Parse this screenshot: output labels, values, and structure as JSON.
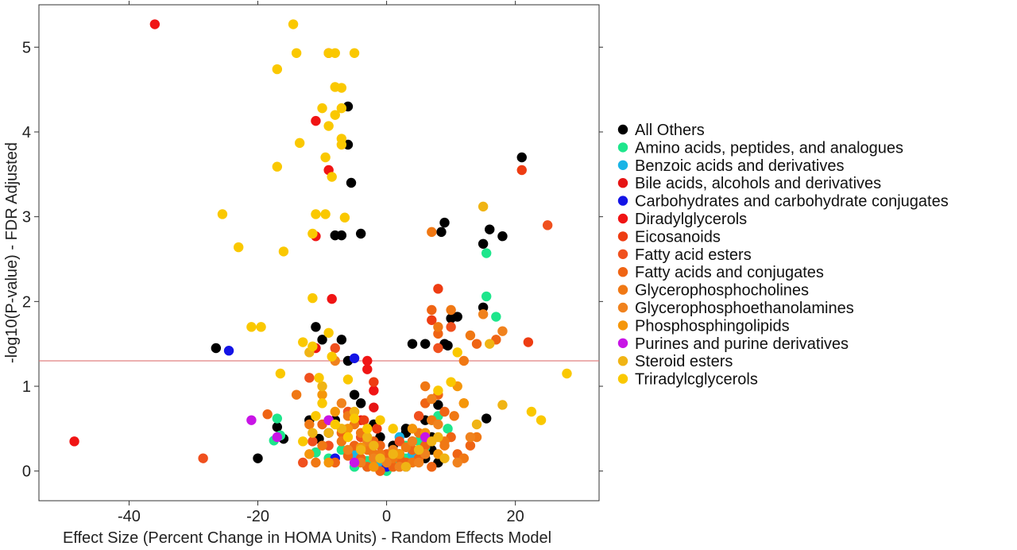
{
  "chart_data": {
    "type": "scatter",
    "title": "",
    "xlabel": "Effect Size (Percent Change in HOMA Units) - Random Effects Model",
    "ylabel": "-log10(P-value) - FDR Adjusted",
    "xlim": [
      -54,
      33
    ],
    "ylim": [
      -0.35,
      5.5
    ],
    "xticks": [
      -40,
      -20,
      0,
      20
    ],
    "yticks": [
      0,
      1,
      2,
      3,
      4,
      5
    ],
    "grid": false,
    "legend_position": "right",
    "hline": {
      "y": 1.3,
      "color": "#e08080"
    },
    "series": [
      {
        "name": "All Others",
        "color": "#000000",
        "points": [
          [
            -26.5,
            1.45
          ],
          [
            -20,
            0.15
          ],
          [
            -17,
            0.52
          ],
          [
            -16,
            0.38
          ],
          [
            -11,
            1.7
          ],
          [
            -10,
            1.55
          ],
          [
            -8,
            2.78
          ],
          [
            -7,
            2.78
          ],
          [
            -4,
            2.8
          ],
          [
            -6,
            4.3
          ],
          [
            -6,
            3.85
          ],
          [
            -5.5,
            3.4
          ],
          [
            -7,
            1.55
          ],
          [
            -6,
            1.3
          ],
          [
            -5,
            0.9
          ],
          [
            -4,
            0.8
          ],
          [
            -2,
            0.55
          ],
          [
            -1,
            0.4
          ],
          [
            1,
            0.3
          ],
          [
            2,
            0.2
          ],
          [
            3,
            0.45
          ],
          [
            4,
            0.35
          ],
          [
            5,
            0.2
          ],
          [
            6,
            0.15
          ],
          [
            7,
            0.25
          ],
          [
            8,
            0.1
          ],
          [
            8,
            0.78
          ],
          [
            9,
            1.5
          ],
          [
            9.5,
            1.48
          ],
          [
            10,
            1.8
          ],
          [
            11,
            1.82
          ],
          [
            8.5,
            2.82
          ],
          [
            9,
            2.93
          ],
          [
            15,
            1.93
          ],
          [
            15.5,
            0.62
          ],
          [
            15,
            2.68
          ],
          [
            16,
            2.85
          ],
          [
            18,
            2.77
          ],
          [
            21,
            3.7
          ],
          [
            3,
            0.5
          ],
          [
            -3,
            0.3
          ],
          [
            -8,
            0.6
          ],
          [
            -9,
            0.45
          ],
          [
            -10.5,
            0.38
          ],
          [
            -11,
            0.22
          ],
          [
            -12,
            0.6
          ],
          [
            6,
            0.6
          ],
          [
            7,
            0.4
          ],
          [
            4,
            1.5
          ],
          [
            6,
            1.5
          ],
          [
            -1,
            0.15
          ],
          [
            0,
            0.05
          ],
          [
            1,
            0.1
          ],
          [
            -2,
            0.1
          ]
        ]
      },
      {
        "name": "Amino acids, peptides, and analogues",
        "color": "#1ee68c",
        "points": [
          [
            -17,
            0.62
          ],
          [
            -17.5,
            0.36
          ],
          [
            -16.5,
            0.42
          ],
          [
            -11,
            0.22
          ],
          [
            -9,
            0.15
          ],
          [
            -7,
            0.25
          ],
          [
            -5,
            0.05
          ],
          [
            -3,
            0.12
          ],
          [
            0,
            0
          ],
          [
            1,
            0.05
          ],
          [
            2,
            0.1
          ],
          [
            3,
            0.15
          ],
          [
            5,
            0.35
          ],
          [
            6,
            0.28
          ],
          [
            7,
            0.6
          ],
          [
            8,
            0.65
          ],
          [
            9.5,
            0.5
          ],
          [
            15.5,
            2.06
          ],
          [
            15.5,
            2.57
          ],
          [
            17,
            1.82
          ],
          [
            -2,
            0.3
          ],
          [
            3,
            0.3
          ]
        ]
      },
      {
        "name": "Benzoic acids and derivatives",
        "color": "#19b4e6",
        "points": [
          [
            -5,
            0.2
          ],
          [
            -3,
            0.05
          ],
          [
            1,
            0.05
          ],
          [
            2,
            0.4
          ],
          [
            4,
            0.2
          ],
          [
            -1,
            0.1
          ]
        ]
      },
      {
        "name": "Bile acids, alcohols and derivatives",
        "color": "#e61414",
        "points": [
          [
            -2,
            0.75
          ],
          [
            -4,
            0.6
          ],
          [
            6,
            0.3
          ]
        ]
      },
      {
        "name": "Carbohydrates and carbohydrate conjugates",
        "color": "#1414e6",
        "points": [
          [
            -24.5,
            1.42
          ],
          [
            -5,
            1.33
          ],
          [
            -8,
            0.15
          ],
          [
            0,
            0.05
          ],
          [
            3,
            0.05
          ]
        ]
      },
      {
        "name": "Diradylglycerols",
        "color": "#f01414",
        "points": [
          [
            -36,
            5.27
          ],
          [
            -9,
            4.93
          ],
          [
            -11,
            4.13
          ],
          [
            -9,
            3.55
          ],
          [
            -11,
            2.77
          ],
          [
            -8.5,
            2.03
          ],
          [
            -11,
            1.45
          ],
          [
            -3,
            1.3
          ],
          [
            -3,
            1.2
          ],
          [
            -2,
            0.95
          ],
          [
            -48.5,
            0.35
          ]
        ]
      },
      {
        "name": "Eicosanoids",
        "color": "#ee3c12",
        "points": [
          [
            -2,
            1.05
          ],
          [
            7,
            1.78
          ],
          [
            -3.5,
            0.6
          ],
          [
            -1.5,
            0.5
          ],
          [
            21,
            3.55
          ],
          [
            22,
            1.52
          ],
          [
            8,
            2.15
          ],
          [
            -0.5,
            0.15
          ]
        ]
      },
      {
        "name": "Fatty acid esters",
        "color": "#f0501e",
        "points": [
          [
            -6,
            0.7
          ],
          [
            -4,
            0.4
          ],
          [
            -2,
            0.2
          ],
          [
            2,
            0.35
          ],
          [
            5,
            0.65
          ],
          [
            8,
            1.45
          ],
          [
            10,
            1.7
          ],
          [
            12,
            0.8
          ],
          [
            -12,
            1.1
          ],
          [
            -9,
            0.3
          ],
          [
            25,
            2.9
          ],
          [
            -28.5,
            0.15
          ],
          [
            -13,
            0.1
          ],
          [
            -11.5,
            0.35
          ],
          [
            -8,
            1.45
          ]
        ]
      },
      {
        "name": "Fatty acids and conjugates",
        "color": "#ef6414",
        "points": [
          [
            -18.5,
            0.67
          ],
          [
            -10,
            0.55
          ],
          [
            -7,
            0.45
          ],
          [
            -5,
            0.3
          ],
          [
            -4,
            0.15
          ],
          [
            -3,
            0.05
          ],
          [
            -1,
            0.0
          ],
          [
            1,
            0.05
          ],
          [
            3,
            0.1
          ],
          [
            4,
            0.25
          ],
          [
            5,
            0.15
          ],
          [
            6,
            0.3
          ],
          [
            7,
            0.05
          ],
          [
            8,
            0.9
          ],
          [
            9,
            0.7
          ],
          [
            10,
            0.4
          ],
          [
            11,
            0.2
          ],
          [
            13,
            0.3
          ],
          [
            14,
            1.5
          ],
          [
            17,
            1.55
          ],
          [
            7,
            1.9
          ],
          [
            -1,
            0.3
          ],
          [
            0,
            0.2
          ],
          [
            2,
            0.15
          ],
          [
            -2,
            0.35
          ],
          [
            -6,
            0.18
          ],
          [
            6,
            0.8
          ],
          [
            8,
            1.62
          ],
          [
            -9,
            0.6
          ],
          [
            -8,
            0.1
          ]
        ]
      },
      {
        "name": "Glycerophosphocholines",
        "color": "#f07814",
        "points": [
          [
            -7,
            0.35
          ],
          [
            -5,
            0.55
          ],
          [
            -3,
            0.25
          ],
          [
            -1,
            0.2
          ],
          [
            1,
            0.15
          ],
          [
            3,
            0.28
          ],
          [
            5,
            0.45
          ],
          [
            6,
            1.0
          ],
          [
            7,
            0.6
          ],
          [
            9,
            0.3
          ],
          [
            10,
            1.9
          ],
          [
            12,
            1.3
          ],
          [
            13,
            1.6
          ],
          [
            -10,
            0.3
          ],
          [
            -11,
            0.1
          ],
          [
            -12,
            0.55
          ],
          [
            -6,
            0.65
          ],
          [
            -4,
            0.45
          ],
          [
            7,
            2.82
          ],
          [
            8,
            1.7
          ],
          [
            9,
            0.35
          ],
          [
            10.5,
            0.65
          ],
          [
            12,
            0.15
          ],
          [
            14,
            0.4
          ],
          [
            -14,
            0.9
          ],
          [
            -2,
            0.2
          ],
          [
            4,
            0.1
          ],
          [
            2,
            0.05
          ]
        ]
      },
      {
        "name": "Glycerophosphoethanolamines",
        "color": "#f0821e",
        "points": [
          [
            -6,
            0.25
          ],
          [
            -4,
            0.1
          ],
          [
            -2,
            0.15
          ],
          [
            0,
            0.1
          ],
          [
            2,
            0.05
          ],
          [
            4,
            0.35
          ],
          [
            6,
            0.2
          ],
          [
            8,
            0.55
          ],
          [
            11,
            0.1
          ],
          [
            13,
            0.4
          ],
          [
            15,
            1.85
          ],
          [
            18,
            1.65
          ],
          [
            -8,
            1.3
          ],
          [
            -7,
            0.8
          ],
          [
            7,
            0.85
          ],
          [
            -3,
            0.35
          ],
          [
            1,
            0.25
          ],
          [
            5,
            0.1
          ]
        ]
      },
      {
        "name": "Phosphosphingolipids",
        "color": "#f5960a",
        "points": [
          [
            -8,
            0.7
          ],
          [
            -6,
            0.5
          ],
          [
            -4,
            0.28
          ],
          [
            -2,
            0.05
          ],
          [
            2,
            0.2
          ],
          [
            4,
            0.5
          ],
          [
            6,
            0.45
          ],
          [
            8,
            0.2
          ],
          [
            11,
            1.0
          ],
          [
            12,
            0.8
          ],
          [
            -10,
            0.9
          ],
          [
            -12,
            0.2
          ],
          [
            -9,
            0.1
          ]
        ]
      },
      {
        "name": "Purines and purine derivatives",
        "color": "#c814e6",
        "points": [
          [
            -21,
            0.6
          ],
          [
            -17,
            0.4
          ],
          [
            -9,
            0.6
          ],
          [
            6,
            0.4
          ],
          [
            -5,
            0.1
          ]
        ]
      },
      {
        "name": "Steroid esters",
        "color": "#f0b414",
        "points": [
          [
            -7,
            0.5
          ],
          [
            -5,
            0.7
          ],
          [
            -3,
            0.4
          ],
          [
            -1,
            0.15
          ],
          [
            3,
            0.05
          ],
          [
            5,
            0.25
          ],
          [
            7,
            0.35
          ],
          [
            9,
            0.15
          ],
          [
            15,
            3.12
          ],
          [
            16,
            1.5
          ],
          [
            18,
            0.78
          ],
          [
            -12,
            1.4
          ],
          [
            -10,
            1.0
          ],
          [
            -11.5,
            0.45
          ],
          [
            -9,
            0.45
          ],
          [
            -4,
            0.25
          ],
          [
            8,
            0.4
          ],
          [
            14,
            0.55
          ],
          [
            -2,
            0.3
          ],
          [
            1,
            0.2
          ]
        ]
      },
      {
        "name": "Triradylcglycerols",
        "color": "#fac800",
        "points": [
          [
            -14.5,
            5.27
          ],
          [
            -14,
            4.93
          ],
          [
            -17,
            4.74
          ],
          [
            -9,
            4.93
          ],
          [
            -8,
            4.93
          ],
          [
            -5,
            4.93
          ],
          [
            -8,
            4.53
          ],
          [
            -7,
            4.52
          ],
          [
            -8,
            4.2
          ],
          [
            -7,
            4.28
          ],
          [
            -10,
            4.28
          ],
          [
            -9,
            4.07
          ],
          [
            -7,
            3.92
          ],
          [
            -7,
            3.85
          ],
          [
            -13.5,
            3.87
          ],
          [
            -17,
            3.59
          ],
          [
            -9.5,
            3.7
          ],
          [
            -8.5,
            3.47
          ],
          [
            -11,
            3.03
          ],
          [
            -9.5,
            3.03
          ],
          [
            -6.5,
            2.99
          ],
          [
            -25.5,
            3.03
          ],
          [
            -23,
            2.64
          ],
          [
            -16,
            2.59
          ],
          [
            -11.5,
            2.8
          ],
          [
            -11.5,
            2.04
          ],
          [
            -21,
            1.7
          ],
          [
            -19.5,
            1.7
          ],
          [
            -13,
            1.52
          ],
          [
            -11.5,
            1.47
          ],
          [
            -9,
            1.63
          ],
          [
            -8.5,
            1.35
          ],
          [
            -10.5,
            1.1
          ],
          [
            -6,
            1.08
          ],
          [
            -16.5,
            1.15
          ],
          [
            -11,
            0.65
          ],
          [
            -13,
            0.35
          ],
          [
            -8,
            0.55
          ],
          [
            -5,
            0.62
          ],
          [
            28,
            1.15
          ],
          [
            22.5,
            0.7
          ],
          [
            24,
            0.6
          ],
          [
            -6,
            0.4
          ],
          [
            -3,
            0.5
          ],
          [
            -10,
            0.8
          ],
          [
            10,
            1.05
          ],
          [
            8,
            0.95
          ],
          [
            11,
            1.4
          ],
          [
            -1,
            0.6
          ],
          [
            1,
            0.5
          ]
        ]
      }
    ]
  }
}
